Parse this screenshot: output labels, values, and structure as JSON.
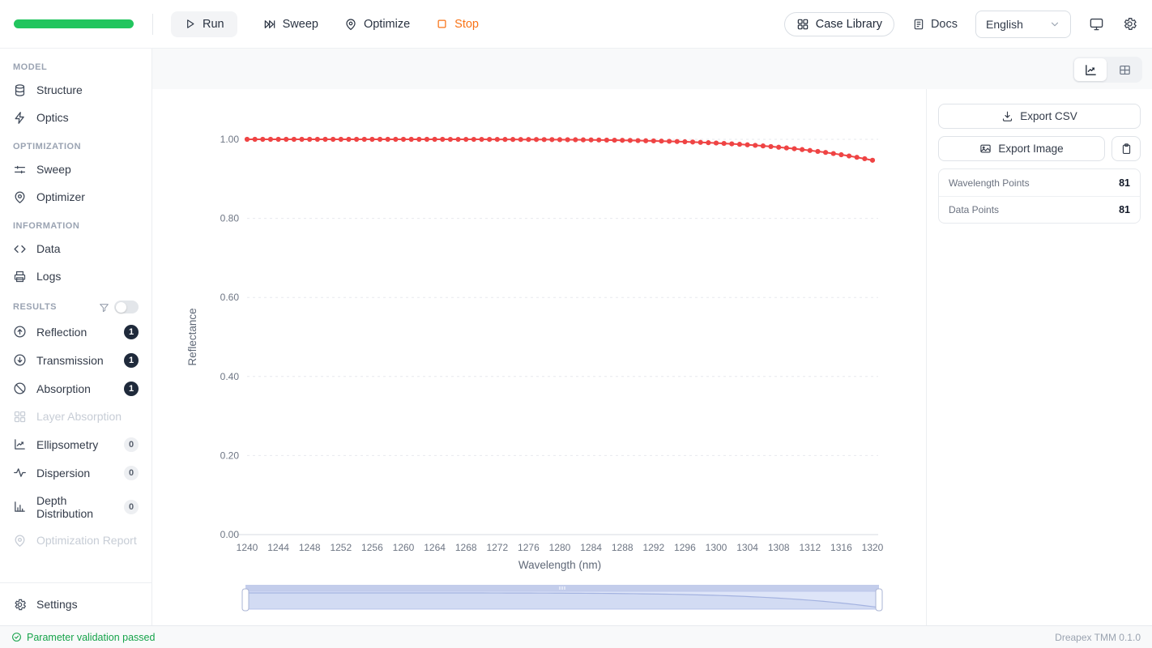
{
  "topbar": {
    "run_label": "Run",
    "sweep_label": "Sweep",
    "optimize_label": "Optimize",
    "stop_label": "Stop",
    "case_library_label": "Case Library",
    "docs_label": "Docs",
    "language_selected": "English",
    "progress_percent": 100
  },
  "sidebar": {
    "sections": [
      {
        "title": "MODEL",
        "items": [
          {
            "label": "Structure"
          },
          {
            "label": "Optics"
          }
        ]
      },
      {
        "title": "OPTIMIZATION",
        "items": [
          {
            "label": "Sweep"
          },
          {
            "label": "Optimizer"
          }
        ]
      },
      {
        "title": "INFORMATION",
        "items": [
          {
            "label": "Data"
          },
          {
            "label": "Logs"
          }
        ]
      },
      {
        "title": "RESULTS",
        "items": [
          {
            "label": "Reflection",
            "badge": "1"
          },
          {
            "label": "Transmission",
            "badge": "1"
          },
          {
            "label": "Absorption",
            "badge": "1"
          },
          {
            "label": "Layer Absorption",
            "disabled": true
          },
          {
            "label": "Ellipsometry",
            "badge": "0"
          },
          {
            "label": "Dispersion",
            "badge": "0"
          },
          {
            "label": "Depth Distribution",
            "badge": "0"
          },
          {
            "label": "Optimization Report",
            "disabled": true
          }
        ]
      }
    ],
    "settings_label": "Settings"
  },
  "right_panel": {
    "export_csv_label": "Export CSV",
    "export_image_label": "Export Image",
    "stats": [
      {
        "label": "Wavelength Points",
        "value": "81"
      },
      {
        "label": "Data Points",
        "value": "81"
      }
    ]
  },
  "statusbar": {
    "message": "Parameter validation passed",
    "version": "Dreapex TMM 0.1.0"
  },
  "colors": {
    "progress_green": "#22c55e",
    "status_green": "#16a34a",
    "stop_orange": "#f97316",
    "series_red": "#ef4444",
    "slider_lavender": "#dee5f8",
    "slider_bar": "#c3cdeb"
  },
  "icons": {
    "run": "play-icon",
    "sweep": "fast-forward-icon",
    "optimize": "map-pin-icon",
    "stop": "square-icon",
    "case_library": "grid-icon",
    "docs": "document-icon",
    "language": "chevron-down-icon",
    "display": "monitor-icon",
    "settings": "gear-icon",
    "structure": "database-icon",
    "optics": "zap-icon",
    "sweep_item": "sliders-icon",
    "optimizer": "map-pin-icon",
    "data": "code-icon",
    "logs": "printer-icon",
    "filter": "funnel-icon",
    "reflection": "arrow-up-circle-icon",
    "transmission": "arrow-down-circle-icon",
    "absorption": "ban-icon",
    "layer_absorption": "grid-icon",
    "ellipsometry": "line-chart-icon",
    "dispersion": "activity-icon",
    "depth_distribution": "bar-chart-icon",
    "optimization_report": "map-pin-icon",
    "export_csv": "download-icon",
    "export_image": "image-icon",
    "copy": "clipboard-icon",
    "view_chart": "line-chart-icon",
    "view_table": "table-icon",
    "status": "check-circle-icon"
  },
  "chart_data": {
    "type": "line",
    "title": "",
    "xlabel": "Wavelength (nm)",
    "ylabel": "Reflectance",
    "x_start": 1240,
    "x_step": 1,
    "xlim": [
      1240,
      1320
    ],
    "ylim": [
      0,
      1.0
    ],
    "x_tick_labels": [
      "1240",
      "1244",
      "1248",
      "1252",
      "1256",
      "1260",
      "1264",
      "1268",
      "1272",
      "1276",
      "1280",
      "1284",
      "1288",
      "1292",
      "1296",
      "1300",
      "1304",
      "1308",
      "1312",
      "1316",
      "1320"
    ],
    "y_tick_values": [
      0,
      0.2,
      0.4,
      0.6,
      0.8,
      1.0
    ],
    "y_tick_labels": [
      "0.00",
      "0.20",
      "0.40",
      "0.60",
      "0.80",
      "1.00"
    ],
    "grid": "dashed-horizontal",
    "legend": "none",
    "has_datazoom_slider": true,
    "series": [
      {
        "name": "Reflectance",
        "color": "#ef4444",
        "marker": "circle",
        "values": [
          1,
          1,
          1,
          1,
          1,
          1,
          1,
          1,
          1,
          1,
          1,
          1,
          1,
          1,
          1,
          1,
          1,
          1,
          1,
          1,
          1,
          1,
          1,
          1,
          1,
          1,
          0.9999,
          0.9999,
          0.9999,
          0.9999,
          0.9999,
          0.9998,
          0.9998,
          0.9997,
          0.9997,
          0.9996,
          0.9996,
          0.9995,
          0.9994,
          0.9993,
          0.9992,
          0.999,
          0.9989,
          0.9987,
          0.9985,
          0.9983,
          0.9981,
          0.9978,
          0.9975,
          0.9972,
          0.9968,
          0.9964,
          0.996,
          0.9955,
          0.995,
          0.9944,
          0.9938,
          0.9931,
          0.9923,
          0.9915,
          0.9906,
          0.9896,
          0.9885,
          0.9874,
          0.9861,
          0.9848,
          0.9833,
          0.9817,
          0.98,
          0.9782,
          0.9762,
          0.9741,
          0.9718,
          0.9694,
          0.9668,
          0.964,
          0.961,
          0.9579,
          0.9545,
          0.9509,
          0.947
        ]
      }
    ]
  }
}
